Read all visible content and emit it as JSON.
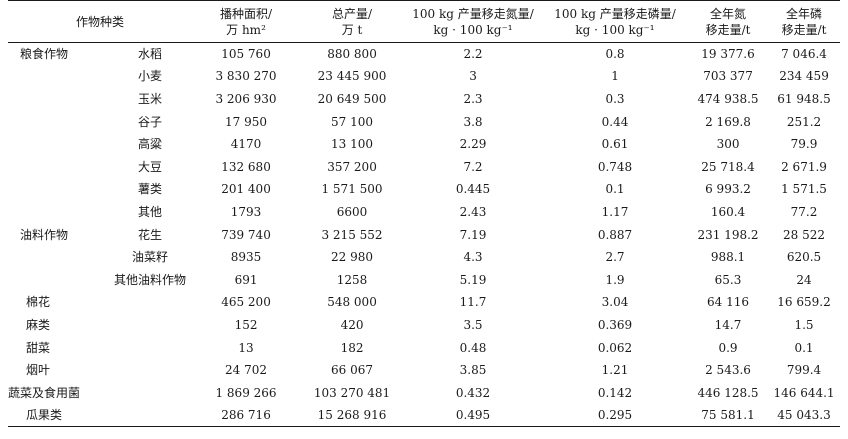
{
  "header": {
    "crop": "作物种类",
    "area": [
      "播种面积/",
      "万 hm²"
    ],
    "production": [
      "总产量/",
      "万 t"
    ],
    "n_per_100": [
      "100 kg 产量移走氮量/",
      "kg · 100 kg⁻¹"
    ],
    "p_per_100": [
      "100 kg 产量移走磷量/",
      "kg · 100 kg⁻¹"
    ],
    "n_total": [
      "全年氮",
      "移走量/t"
    ],
    "p_total": [
      "全年磷",
      "移走量/t"
    ]
  },
  "rows": [
    {
      "group": "粮食作物",
      "sub": "水稻",
      "area": "105 760",
      "production": "880 800",
      "n": "2.2",
      "p": "0.8",
      "nt": "19 377.6",
      "pt": "7 046.4"
    },
    {
      "group": "",
      "sub": "小麦",
      "area": "3 830 270",
      "production": "23 445 900",
      "n": "3",
      "p": "1",
      "nt": "703 377",
      "pt": "234 459"
    },
    {
      "group": "",
      "sub": "玉米",
      "area": "3 206 930",
      "production": "20 649 500",
      "n": "2.3",
      "p": "0.3",
      "nt": "474 938.5",
      "pt": "61 948.5"
    },
    {
      "group": "",
      "sub": "谷子",
      "area": "17 950",
      "production": "57 100",
      "n": "3.8",
      "p": "0.44",
      "nt": "2 169.8",
      "pt": "251.2"
    },
    {
      "group": "",
      "sub": "高粱",
      "area": "4170",
      "production": "13 100",
      "n": "2.29",
      "p": "0.61",
      "nt": "300",
      "pt": "79.9"
    },
    {
      "group": "",
      "sub": "大豆",
      "area": "132 680",
      "production": "357 200",
      "n": "7.2",
      "p": "0.748",
      "nt": "25 718.4",
      "pt": "2 671.9"
    },
    {
      "group": "",
      "sub": "薯类",
      "area": "201 400",
      "production": "1 571 500",
      "n": "0.445",
      "p": "0.1",
      "nt": "6 993.2",
      "pt": "1 571.5"
    },
    {
      "group": "",
      "sub": "其他",
      "area": "1793",
      "production": "6600",
      "n": "2.43",
      "p": "1.17",
      "nt": "160.4",
      "pt": "77.2"
    },
    {
      "group": "油料作物",
      "sub": "花生",
      "area": "739 740",
      "production": "3 215 552",
      "n": "7.19",
      "p": "0.887",
      "nt": "231 198.2",
      "pt": "28 522"
    },
    {
      "group": "",
      "sub": "油菜籽",
      "area": "8935",
      "production": "22 980",
      "n": "4.3",
      "p": "2.7",
      "nt": "988.1",
      "pt": "620.5"
    },
    {
      "group": "",
      "sub": "其他油料作物",
      "area": "691",
      "production": "1258",
      "n": "5.19",
      "p": "1.9",
      "nt": "65.3",
      "pt": "24"
    },
    {
      "group": "棉花",
      "sub": "",
      "area": "465 200",
      "production": "548 000",
      "n": "11.7",
      "p": "3.04",
      "nt": "64 116",
      "pt": "16 659.2"
    },
    {
      "group": "麻类",
      "sub": "",
      "area": "152",
      "production": "420",
      "n": "3.5",
      "p": "0.369",
      "nt": "14.7",
      "pt": "1.5"
    },
    {
      "group": "甜菜",
      "sub": "",
      "area": "13",
      "production": "182",
      "n": "0.48",
      "p": "0.062",
      "nt": "0.9",
      "pt": "0.1"
    },
    {
      "group": "烟叶",
      "sub": "",
      "area": "24 702",
      "production": "66 067",
      "n": "3.85",
      "p": "1.21",
      "nt": "2 543.6",
      "pt": "799.4"
    },
    {
      "group": "蔬菜及食用菌",
      "sub": "",
      "area": "1 869 266",
      "production": "103 270 481",
      "n": "0.432",
      "p": "0.142",
      "nt": "446 128.5",
      "pt": "146 644.1"
    },
    {
      "group": "瓜果类",
      "sub": "",
      "area": "286 716",
      "production": "15 268 916",
      "n": "0.495",
      "p": "0.295",
      "nt": "75 581.1",
      "pt": "45 043.3"
    }
  ]
}
